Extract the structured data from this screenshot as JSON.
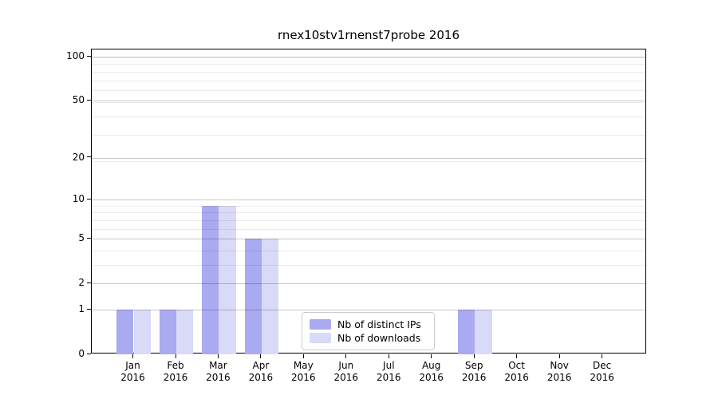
{
  "title": "rnex10stv1rnenst7probe 2016",
  "chart_data": {
    "type": "bar",
    "title": "rnex10stv1rnenst7probe 2016",
    "categories": [
      "Jan",
      "Feb",
      "Mar",
      "Apr",
      "May",
      "Jun",
      "Jul",
      "Aug",
      "Sep",
      "Oct",
      "Nov",
      "Dec"
    ],
    "x_tick_year": "2016",
    "series": [
      {
        "name": "Nb of distinct IPs",
        "color": "#aaaaf0",
        "values": [
          1,
          1,
          9,
          5,
          0,
          0,
          0,
          0,
          1,
          0,
          0,
          0
        ]
      },
      {
        "name": "Nb of downloads",
        "color": "#d9d9f8",
        "values": [
          1,
          1,
          9,
          5,
          0,
          0,
          0,
          0,
          1,
          0,
          0,
          0
        ]
      }
    ],
    "xlabel": "",
    "ylabel": "",
    "y_scale": "log10(1+y)",
    "y_ticks_major": [
      0,
      1,
      2,
      5,
      10,
      20,
      50,
      100
    ],
    "y_gridlines_minor": [
      3,
      4,
      6,
      7,
      8,
      9,
      19,
      29,
      39,
      49,
      59,
      69,
      79,
      89,
      99
    ],
    "ylim": [
      0,
      112
    ],
    "grid": "both",
    "legend_position": "inside-lower-center"
  }
}
